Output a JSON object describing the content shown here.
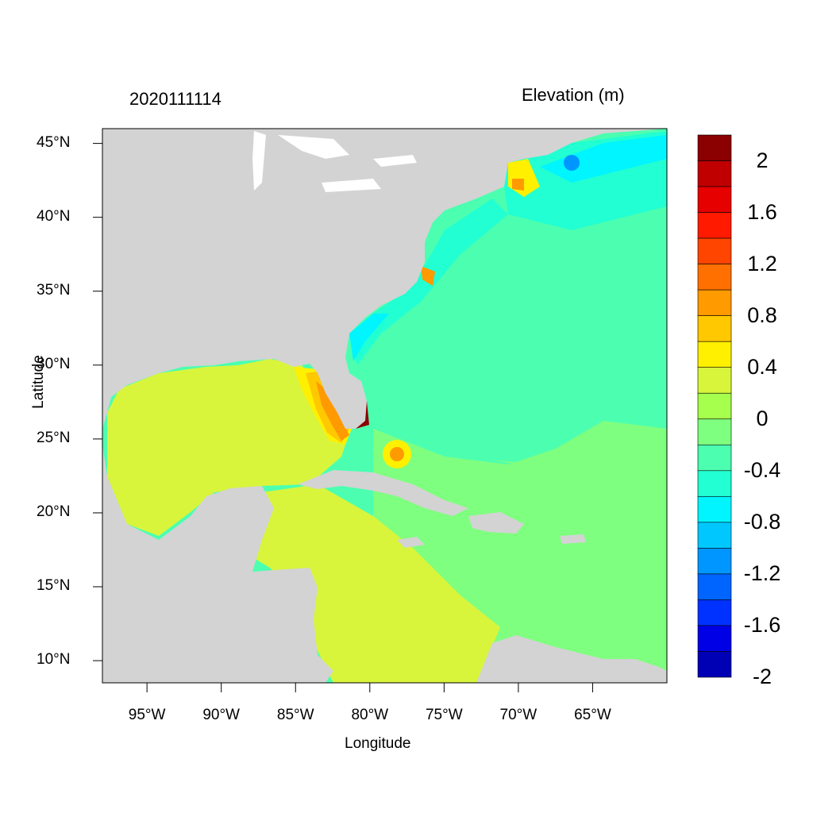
{
  "header": {
    "left_title": "2020111114",
    "right_title": "Elevation (m)"
  },
  "axes": {
    "xlabel": "Longitude",
    "ylabel": "Latitude",
    "x_ticks": [
      "95°W",
      "90°W",
      "85°W",
      "80°W",
      "75°W",
      "70°W",
      "65°W"
    ],
    "y_ticks": [
      "45°N",
      "40°N",
      "35°N",
      "30°N",
      "25°N",
      "20°N",
      "15°N",
      "10°N"
    ],
    "x_tick_values": [
      -95,
      -90,
      -85,
      -80,
      -75,
      -70,
      -65
    ],
    "y_tick_values": [
      45,
      40,
      35,
      30,
      25,
      20,
      15,
      10
    ],
    "xlim": [
      -98,
      -60
    ],
    "ylim": [
      8.5,
      46
    ]
  },
  "colorbar": {
    "labels": [
      "2",
      "1.6",
      "1.2",
      "0.8",
      "0.4",
      "0",
      "-0.4",
      "-0.8",
      "-1.2",
      "-1.6",
      "-2"
    ],
    "colors": [
      "#8b0000",
      "#c00000",
      "#e60000",
      "#ff1a00",
      "#ff4500",
      "#ff7000",
      "#ff9a00",
      "#ffc800",
      "#fff000",
      "#d8f53c",
      "#a6ff4c",
      "#7fff7f",
      "#4cffb0",
      "#22ffd2",
      "#00f5ff",
      "#00c8ff",
      "#0096ff",
      "#0064ff",
      "#0032ff",
      "#0000e6",
      "#0000b4"
    ]
  },
  "map": {
    "land_color": "#d3d3d3",
    "ocean_base_color": "#4cffb0"
  }
}
